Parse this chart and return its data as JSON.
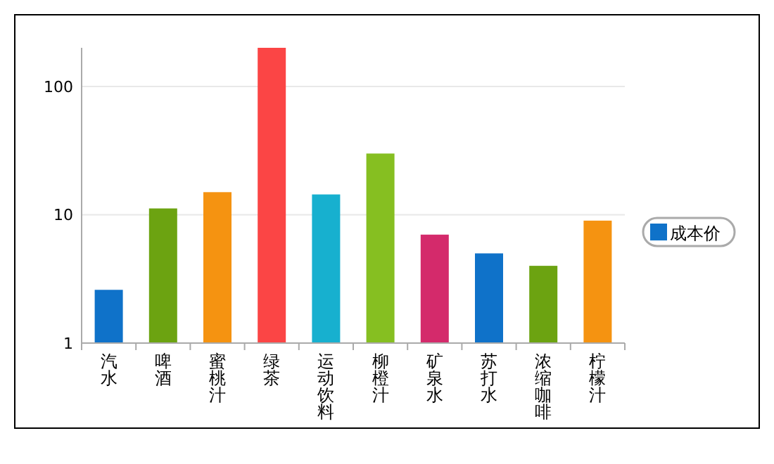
{
  "chart_data": {
    "type": "bar",
    "categories": [
      "汽水",
      "啤酒",
      "蜜桃汁",
      "绿茶",
      "运动饮料",
      "柳橙汁",
      "矿泉水",
      "苏打水",
      "浓缩咖啡",
      "柠檬汁"
    ],
    "series": [
      {
        "name": "成本价",
        "color": "#0f72c9",
        "colors": [
          "#0f72c9",
          "#6ca311",
          "#f59311",
          "#fb4545",
          "#17b0cf",
          "#86bf21",
          "#d42a6b",
          "#0f72c9",
          "#6ca311",
          "#f59311"
        ],
        "values": [
          2.6,
          11.2,
          15,
          200,
          14.4,
          30,
          7,
          5,
          4,
          9
        ]
      }
    ],
    "log": true,
    "ylim": [
      1,
      200
    ],
    "yticks": [
      1,
      10,
      100
    ],
    "grid": "y",
    "legend": "right"
  }
}
